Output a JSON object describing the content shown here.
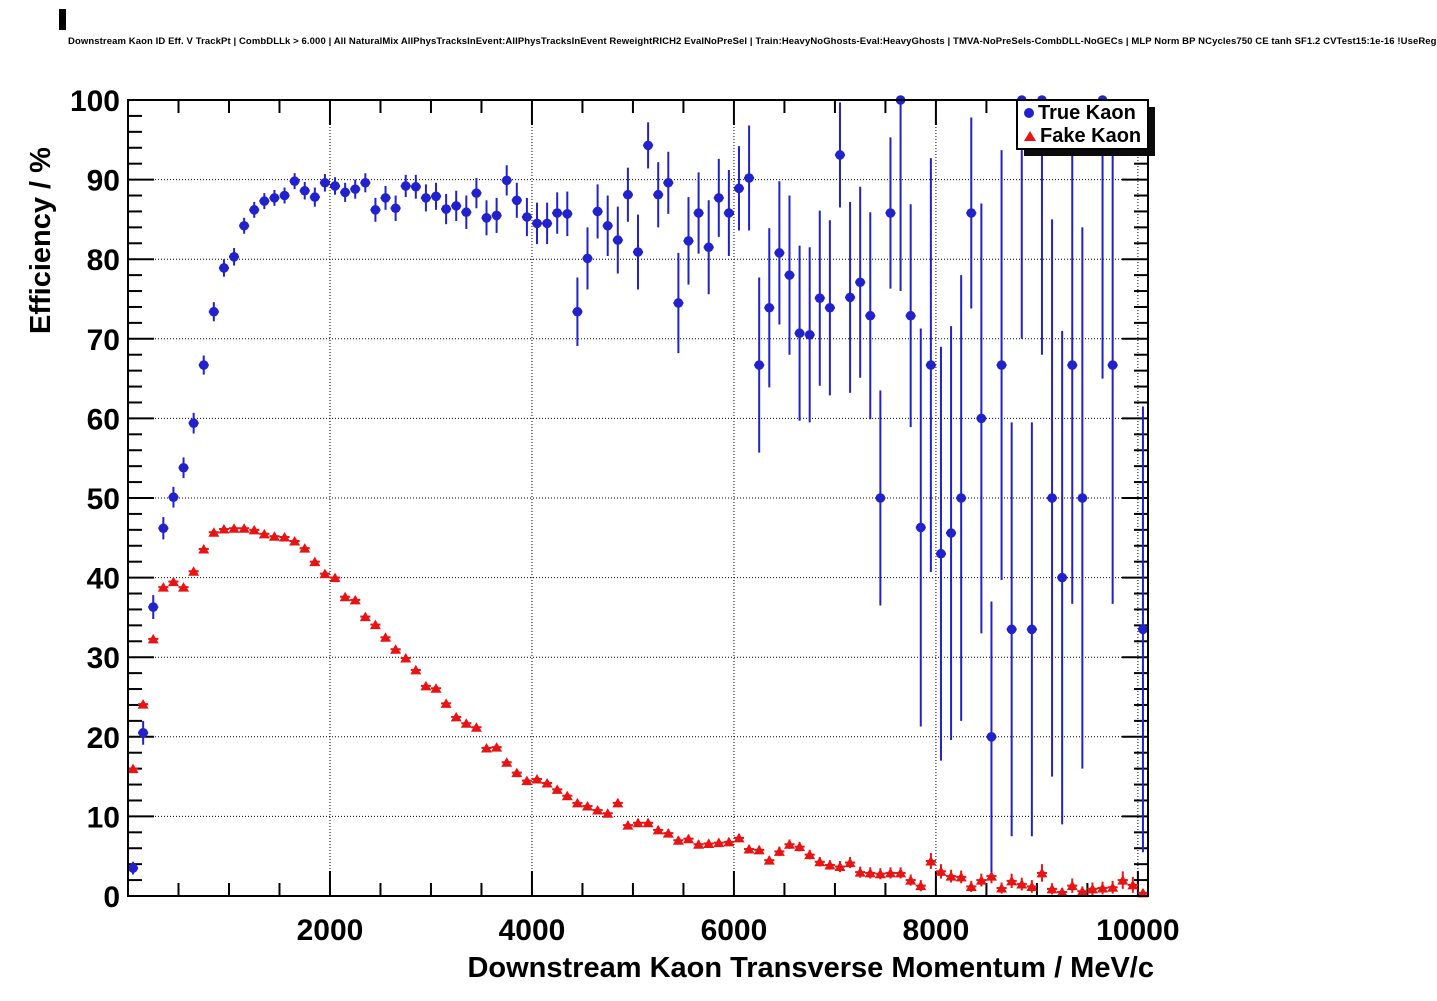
{
  "title": "Downstream Kaon ID Eff. V TrackPt | CombDLLk > 6.000 | All NaturalMix AllPhysTracksInEvent:AllPhysTracksInEvent ReweightRICH2 EvalNoPreSel | Train:HeavyNoGhosts-Eval:HeavyGhosts | TMVA-NoPreSels-CombDLL-NoGECs | MLP Norm BP NCycles750 CE tanh SF1.2 CVTest15:1e-16 !UseReg",
  "chart_data": {
    "type": "scatter",
    "title": "Downstream Kaon ID Eff. V TrackPt | CombDLLk > 6.000 | All NaturalMix AllPhysTracksInEvent:AllPhysTracksInEvent ReweightRICH2 EvalNoPreSel | Train:HeavyNoGhosts-Eval:HeavyGhosts | TMVA-NoPreSels-CombDLL-NoGECs | MLP Norm BP NCycles750 CE tanh SF1.2 CVTest15:1e-16 !UseReg",
    "xlabel": "Downstream Kaon Transverse Momentum / MeV/c",
    "ylabel": "Efficiency / %",
    "xlim": [
      0,
      10100
    ],
    "ylim": [
      0,
      100
    ],
    "x_ticks": [
      2000,
      4000,
      6000,
      8000,
      10000
    ],
    "x_tick_labels": [
      "2000",
      "4000",
      "6000",
      "8000",
      "10000"
    ],
    "x_minor_step": 500,
    "y_ticks": [
      0,
      10,
      20,
      30,
      40,
      50,
      60,
      70,
      80,
      90,
      100
    ],
    "y_tick_labels": [
      "0",
      "10",
      "20",
      "30",
      "40",
      "50",
      "60",
      "70",
      "80",
      "90",
      "100"
    ],
    "y_minor_step": 2,
    "grid": true,
    "legend_position": "top-right",
    "x_bin_half_width": 50,
    "series": [
      {
        "name": "True Kaon",
        "marker": "circle",
        "color": "#2222cc",
        "points": [
          [
            50,
            3.5,
            0.8
          ],
          [
            150,
            20.5,
            1.5
          ],
          [
            250,
            36.3,
            1.5
          ],
          [
            350,
            46.2,
            1.4
          ],
          [
            450,
            50.1,
            1.3
          ],
          [
            550,
            53.8,
            1.3
          ],
          [
            650,
            59.4,
            1.3
          ],
          [
            750,
            66.7,
            1.2
          ],
          [
            850,
            73.4,
            1.2
          ],
          [
            950,
            78.9,
            1.1
          ],
          [
            1050,
            80.3,
            1.1
          ],
          [
            1150,
            84.2,
            1.0
          ],
          [
            1250,
            86.2,
            1.0
          ],
          [
            1350,
            87.3,
            1.0
          ],
          [
            1450,
            87.7,
            1.0
          ],
          [
            1550,
            88.0,
            1.0
          ],
          [
            1650,
            89.8,
            1.0
          ],
          [
            1750,
            88.6,
            1.1
          ],
          [
            1850,
            87.8,
            1.2
          ],
          [
            1950,
            89.6,
            1.1
          ],
          [
            2050,
            89.2,
            1.1
          ],
          [
            2150,
            88.4,
            1.2
          ],
          [
            2250,
            88.8,
            1.2
          ],
          [
            2350,
            89.6,
            1.2
          ],
          [
            2450,
            86.2,
            1.5
          ],
          [
            2550,
            87.7,
            1.5
          ],
          [
            2650,
            86.4,
            1.6
          ],
          [
            2750,
            89.2,
            1.4
          ],
          [
            2850,
            89.1,
            1.5
          ],
          [
            2950,
            87.7,
            1.7
          ],
          [
            3050,
            87.9,
            1.7
          ],
          [
            3150,
            86.3,
            1.9
          ],
          [
            3250,
            86.7,
            1.9
          ],
          [
            3350,
            85.9,
            2.1
          ],
          [
            3450,
            88.3,
            1.9
          ],
          [
            3550,
            85.2,
            2.2
          ],
          [
            3650,
            85.5,
            2.2
          ],
          [
            3750,
            89.9,
            1.9
          ],
          [
            3850,
            87.4,
            2.2
          ],
          [
            3950,
            85.3,
            2.4
          ],
          [
            4050,
            84.5,
            2.6
          ],
          [
            4150,
            84.5,
            2.6
          ],
          [
            4250,
            85.8,
            2.6
          ],
          [
            4350,
            85.7,
            2.8
          ],
          [
            4450,
            73.4,
            4.3
          ],
          [
            4550,
            80.1,
            3.9
          ],
          [
            4650,
            86.0,
            3.4
          ],
          [
            4750,
            84.2,
            3.8
          ],
          [
            4850,
            82.4,
            4.2
          ],
          [
            4950,
            88.1,
            3.4
          ],
          [
            5050,
            80.9,
            4.7
          ],
          [
            5150,
            94.3,
            2.9
          ],
          [
            5250,
            88.1,
            4.1
          ],
          [
            5350,
            89.6,
            3.9
          ],
          [
            5450,
            74.5,
            6.3
          ],
          [
            5550,
            82.3,
            5.5
          ],
          [
            5650,
            85.8,
            5.1
          ],
          [
            5750,
            81.5,
            5.9
          ],
          [
            5850,
            87.7,
            4.9
          ],
          [
            5950,
            85.8,
            5.4
          ],
          [
            6050,
            88.9,
            5.3
          ],
          [
            6150,
            90.2,
            6.6
          ],
          [
            6250,
            66.7,
            11.0
          ],
          [
            6350,
            73.9,
            10.0
          ],
          [
            6450,
            80.8,
            9.0
          ],
          [
            6550,
            78.0,
            10.0
          ],
          [
            6650,
            70.7,
            11.0
          ],
          [
            6750,
            70.5,
            11.0
          ],
          [
            6850,
            75.1,
            11.0
          ],
          [
            6950,
            73.9,
            11.0
          ],
          [
            7050,
            93.1,
            6.6
          ],
          [
            7150,
            75.2,
            12.0
          ],
          [
            7250,
            77.1,
            12.0
          ],
          [
            7350,
            72.9,
            13.0
          ],
          [
            7450,
            50.0,
            13.5
          ],
          [
            7550,
            85.8,
            9.5
          ],
          [
            7650,
            100.0,
            24.0
          ],
          [
            7750,
            72.9,
            14.0
          ],
          [
            7850,
            46.3,
            25.0
          ],
          [
            7950,
            66.7,
            26.0
          ],
          [
            8050,
            43.0,
            26.0
          ],
          [
            8150,
            45.6,
            26.0
          ],
          [
            8250,
            50.0,
            28.0
          ],
          [
            8350,
            85.8,
            12.0
          ],
          [
            8450,
            60.0,
            27.0
          ],
          [
            8550,
            20.0,
            17.0
          ],
          [
            8650,
            66.7,
            27.0
          ],
          [
            8750,
            33.5,
            26.0
          ],
          [
            8850,
            100.0,
            30.0
          ],
          [
            8950,
            33.5,
            26.0
          ],
          [
            9050,
            100.0,
            32.0
          ],
          [
            9150,
            50.0,
            35.0
          ],
          [
            9250,
            40.0,
            31.0
          ],
          [
            9350,
            66.7,
            30.0
          ],
          [
            9450,
            50.0,
            34.0
          ],
          [
            9650,
            100.0,
            35.0
          ],
          [
            9750,
            66.7,
            30.0
          ],
          [
            10050,
            33.5,
            28.0
          ]
        ]
      },
      {
        "name": "Fake Kaon",
        "marker": "triangle",
        "color": "#e81414",
        "points": [
          [
            50,
            16.0,
            0.3
          ],
          [
            150,
            24.1,
            0.3
          ],
          [
            250,
            32.3,
            0.3
          ],
          [
            350,
            38.8,
            0.3
          ],
          [
            450,
            39.5,
            0.3
          ],
          [
            550,
            38.8,
            0.3
          ],
          [
            650,
            40.8,
            0.3
          ],
          [
            750,
            43.6,
            0.3
          ],
          [
            850,
            45.7,
            0.3
          ],
          [
            950,
            46.1,
            0.3
          ],
          [
            1050,
            46.2,
            0.3
          ],
          [
            1150,
            46.2,
            0.3
          ],
          [
            1250,
            46.0,
            0.3
          ],
          [
            1350,
            45.5,
            0.3
          ],
          [
            1450,
            45.2,
            0.3
          ],
          [
            1550,
            45.1,
            0.3
          ],
          [
            1650,
            44.6,
            0.3
          ],
          [
            1750,
            43.7,
            0.3
          ],
          [
            1850,
            42.0,
            0.3
          ],
          [
            1950,
            40.5,
            0.3
          ],
          [
            2050,
            40.0,
            0.4
          ],
          [
            2150,
            37.6,
            0.4
          ],
          [
            2250,
            37.2,
            0.4
          ],
          [
            2350,
            35.1,
            0.4
          ],
          [
            2450,
            34.1,
            0.4
          ],
          [
            2550,
            32.5,
            0.4
          ],
          [
            2650,
            31.0,
            0.4
          ],
          [
            2750,
            29.9,
            0.4
          ],
          [
            2850,
            28.4,
            0.4
          ],
          [
            2950,
            26.4,
            0.4
          ],
          [
            3050,
            26.1,
            0.4
          ],
          [
            3150,
            24.2,
            0.4
          ],
          [
            3250,
            22.5,
            0.4
          ],
          [
            3350,
            21.7,
            0.4
          ],
          [
            3450,
            21.2,
            0.4
          ],
          [
            3550,
            18.6,
            0.4
          ],
          [
            3650,
            18.7,
            0.4
          ],
          [
            3750,
            16.8,
            0.4
          ],
          [
            3850,
            15.5,
            0.4
          ],
          [
            3950,
            14.5,
            0.4
          ],
          [
            4050,
            14.7,
            0.4
          ],
          [
            4150,
            14.2,
            0.4
          ],
          [
            4250,
            13.4,
            0.4
          ],
          [
            4350,
            12.6,
            0.4
          ],
          [
            4450,
            11.7,
            0.4
          ],
          [
            4550,
            11.3,
            0.4
          ],
          [
            4650,
            10.8,
            0.4
          ],
          [
            4750,
            10.4,
            0.4
          ],
          [
            4850,
            11.7,
            0.5
          ],
          [
            4950,
            8.9,
            0.5
          ],
          [
            5050,
            9.2,
            0.5
          ],
          [
            5150,
            9.2,
            0.5
          ],
          [
            5250,
            8.3,
            0.5
          ],
          [
            5350,
            7.9,
            0.5
          ],
          [
            5450,
            7.0,
            0.5
          ],
          [
            5550,
            7.2,
            0.5
          ],
          [
            5650,
            6.5,
            0.5
          ],
          [
            5750,
            6.6,
            0.5
          ],
          [
            5850,
            6.7,
            0.5
          ],
          [
            5950,
            6.8,
            0.5
          ],
          [
            6050,
            7.3,
            0.5
          ],
          [
            6150,
            5.9,
            0.5
          ],
          [
            6250,
            5.8,
            0.5
          ],
          [
            6350,
            4.5,
            0.5
          ],
          [
            6450,
            5.6,
            0.6
          ],
          [
            6550,
            6.5,
            0.6
          ],
          [
            6650,
            6.2,
            0.6
          ],
          [
            6750,
            5.2,
            0.6
          ],
          [
            6850,
            4.3,
            0.6
          ],
          [
            6950,
            3.9,
            0.6
          ],
          [
            7050,
            3.7,
            0.7
          ],
          [
            7150,
            4.2,
            0.7
          ],
          [
            7250,
            3.0,
            0.7
          ],
          [
            7350,
            2.9,
            0.7
          ],
          [
            7450,
            2.8,
            0.7
          ],
          [
            7550,
            2.9,
            0.7
          ],
          [
            7650,
            2.9,
            0.7
          ],
          [
            7750,
            2.0,
            0.7
          ],
          [
            7850,
            1.3,
            0.7
          ],
          [
            7950,
            4.4,
            1.0
          ],
          [
            8050,
            3.1,
            0.9
          ],
          [
            8150,
            2.5,
            0.8
          ],
          [
            8250,
            2.4,
            0.8
          ],
          [
            8350,
            1.2,
            0.7
          ],
          [
            8450,
            2.0,
            0.8
          ],
          [
            8550,
            2.5,
            0.9
          ],
          [
            8650,
            1.0,
            0.7
          ],
          [
            8750,
            1.9,
            0.9
          ],
          [
            8850,
            1.5,
            0.8
          ],
          [
            8950,
            1.2,
            0.8
          ],
          [
            9050,
            2.9,
            1.1
          ],
          [
            9150,
            0.9,
            0.7
          ],
          [
            9250,
            0.5,
            0.5
          ],
          [
            9350,
            1.3,
            0.9
          ],
          [
            9450,
            0.6,
            0.6
          ],
          [
            9550,
            0.9,
            0.8
          ],
          [
            9650,
            1.0,
            0.8
          ],
          [
            9750,
            1.1,
            0.8
          ],
          [
            9850,
            2.0,
            1.1
          ],
          [
            9950,
            1.4,
            1.0
          ],
          [
            10050,
            0.4,
            0.4
          ]
        ]
      }
    ]
  },
  "legend": {
    "entries": [
      {
        "label": "True Kaon"
      },
      {
        "label": "Fake Kaon"
      }
    ]
  }
}
